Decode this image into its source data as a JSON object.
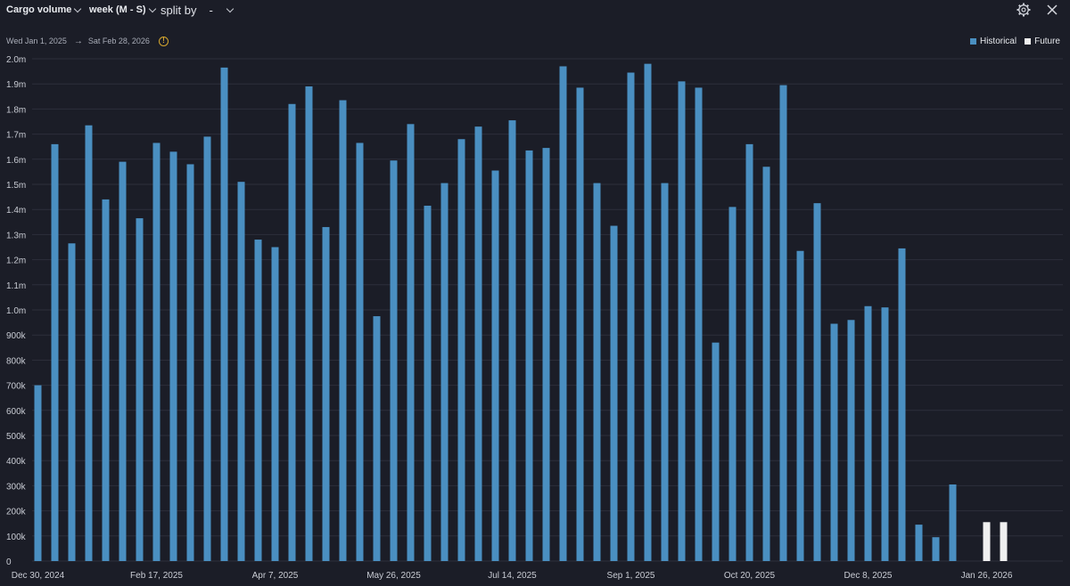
{
  "toolbar": {
    "metric_label": "Cargo volume",
    "period_label": "week (M - S)",
    "split_label": "split by",
    "split_value": "-",
    "settings_icon": "gear-icon",
    "close_icon": "close-icon"
  },
  "date_range": {
    "start": "Wed Jan 1, 2025",
    "end": "Sat Feb 28, 2026",
    "warning_icon": "warning-icon"
  },
  "colors": {
    "historical": "#4a8fc1",
    "future": "#f0f0f0",
    "grid": "#2c2f3b",
    "background": "#1b1d27"
  },
  "chart_data": {
    "type": "bar",
    "y_ticks": [
      "0",
      "100k",
      "200k",
      "300k",
      "400k",
      "500k",
      "600k",
      "700k",
      "800k",
      "900k",
      "1.0m",
      "1.1m",
      "1.2m",
      "1.3m",
      "1.4m",
      "1.5m",
      "1.6m",
      "1.7m",
      "1.8m",
      "1.9m",
      "2.0m"
    ],
    "ylim": [
      0,
      2000000
    ],
    "x_tick_labels": [
      "Dec 30, 2024",
      "Feb 17, 2025",
      "Apr 7, 2025",
      "May 26, 2025",
      "Jul 14, 2025",
      "Sep 1, 2025",
      "Oct 20, 2025",
      "Dec 8, 2025",
      "Jan 26, 2026"
    ],
    "legend_position": "top-right",
    "grid": true,
    "series": [
      {
        "name": "Historical",
        "start_week": "Dec 30, 2024",
        "values": [
          700000,
          1660000,
          1265000,
          1735000,
          1440000,
          1590000,
          1365000,
          1665000,
          1630000,
          1580000,
          1690000,
          1965000,
          1510000,
          1280000,
          1250000,
          1820000,
          1890000,
          1330000,
          1835000,
          1665000,
          975000,
          1595000,
          1740000,
          1415000,
          1505000,
          1680000,
          1730000,
          1555000,
          1755000,
          1635000,
          1645000,
          1970000,
          1885000,
          1505000,
          1335000,
          1945000,
          1980000,
          1505000,
          1910000,
          1885000,
          870000,
          1410000,
          1660000,
          1570000,
          1895000,
          1235000,
          1425000,
          945000,
          960000,
          1015000,
          1010000,
          1245000,
          145000,
          95000,
          305000
        ]
      },
      {
        "name": "Future",
        "start_week": "Jan 26, 2026",
        "values": [
          155000,
          155000
        ]
      }
    ]
  }
}
